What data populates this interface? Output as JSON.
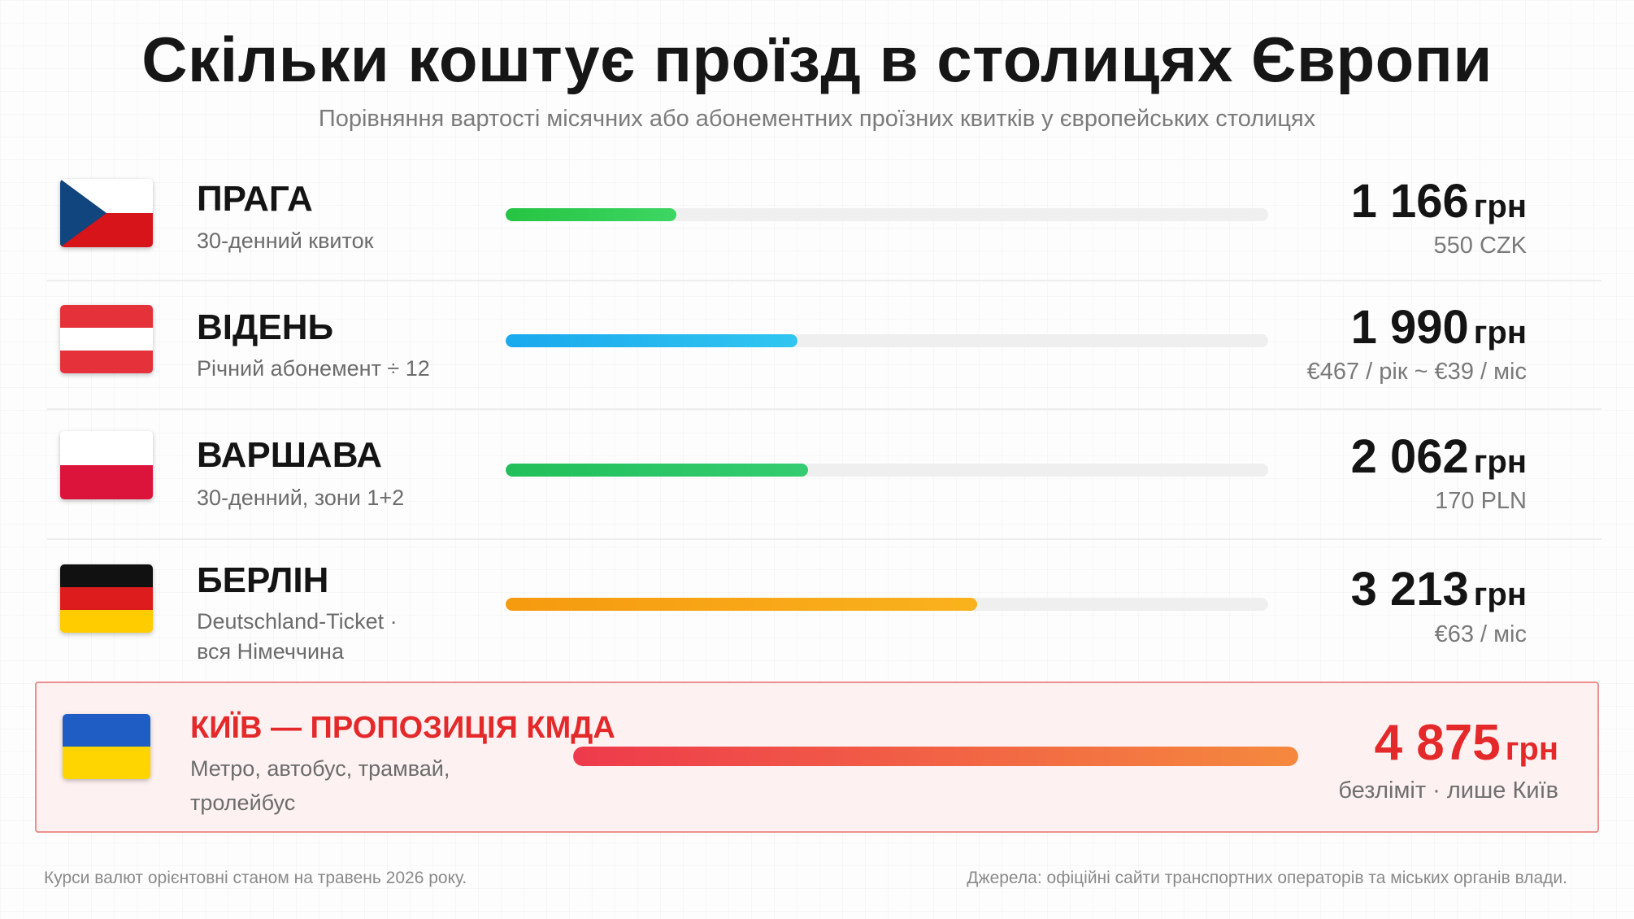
{
  "header": {
    "title": "Скільки коштує проїзд в столицях Європи",
    "subtitle": "Порівняння вартості місячних або абонементних проїзних квитків у європейських столицях"
  },
  "chart_data": {
    "type": "bar",
    "title": "Скільки коштує проїзд в столицях Європи",
    "subtitle": "Порівняння вартості місячних або абонементних проїзних квитків у європейських столицях",
    "categories": [
      "ПРАГА",
      "ВІДЕНЬ",
      "ВАРШАВА",
      "БЕРЛІН",
      "КИЇВ — ПРОПОЗИЦІЯ КМДА"
    ],
    "values": [
      1166,
      1990,
      2062,
      3213,
      4875
    ],
    "unit": "грн",
    "xlim": [
      0,
      5200
    ],
    "grid": false,
    "legend": "none"
  },
  "rows": [
    {
      "city": "ПРАГА",
      "desc": "30-денний квиток",
      "price": "1 166",
      "currency": "грн",
      "sub": "550 CZK",
      "value": 1166,
      "flag": "czech-flag",
      "colors": [
        "#26c443",
        "#3dd663"
      ]
    },
    {
      "city": "ВІДЕНЬ",
      "desc": "Річний абонемент ÷ 12",
      "price": "1 990",
      "currency": "грн",
      "sub": "€467 / рік  ~ €39 / міс",
      "value": 1990,
      "flag": "austria-flag",
      "colors": [
        "#1aa9ee",
        "#30c6f0"
      ]
    },
    {
      "city": "ВАРШАВА",
      "desc": "30-денний, зони 1+2",
      "price": "2 062",
      "currency": "грн",
      "sub": "170 PLN",
      "value": 2062,
      "flag": "poland-flag",
      "colors": [
        "#22bf5a",
        "#34cc70"
      ]
    },
    {
      "city": "БЕРЛІН",
      "desc_lines": [
        "Deutschland-Ticket  ·",
        "вся Німеччина"
      ],
      "price": "3 213",
      "currency": "грн",
      "sub": "€63 / міс",
      "value": 3213,
      "flag": "germany-flag",
      "colors": [
        "#f69a10",
        "#f9b21d"
      ]
    }
  ],
  "kyiv": {
    "city": "КИЇВ — ПРОПОЗИЦІЯ КМДА",
    "desc_lines": [
      "Метро, автобус, трамвай,",
      "тролейбус"
    ],
    "price": "4 875",
    "currency": "грн",
    "sub": "безліміт   ·   лише Київ",
    "value": 4875,
    "flag": "ukraine-flag",
    "colors": [
      "#ee3a4c",
      "#f5893e"
    ],
    "accent": "#e4292b"
  },
  "footer": {
    "left": "Курси валют орієнтовні станом на травень 2026 року.",
    "right": "Джерела: офіційні сайти транспортних операторів та міських органів влади."
  }
}
